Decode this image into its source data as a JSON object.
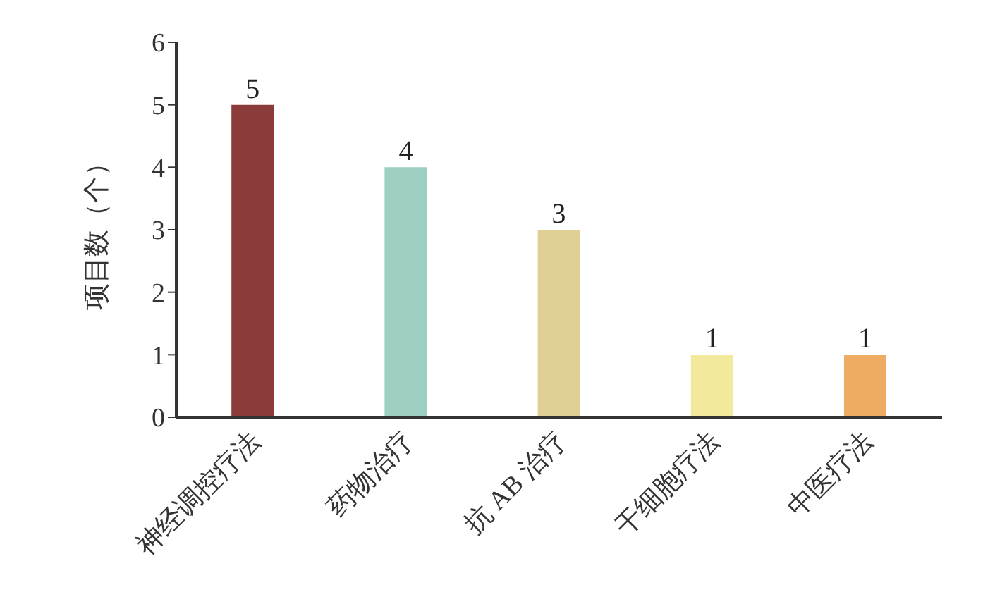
{
  "chart_data": {
    "type": "bar",
    "ylabel": "项目数（个）",
    "categories": [
      "神经调控疗法",
      "药物治疗",
      "抗 AB 治疗",
      "干细胞疗法",
      "中医疗法"
    ],
    "values": [
      5,
      4,
      3,
      1,
      1
    ],
    "colors": [
      "#8c3b3b",
      "#9dcfc2",
      "#e0cf94",
      "#f3e99c",
      "#eeab62"
    ],
    "ylim": [
      0,
      6
    ],
    "yticks": [
      0,
      1,
      2,
      3,
      4,
      5,
      6
    ],
    "data_labels": true,
    "grid": false,
    "legend": false
  }
}
